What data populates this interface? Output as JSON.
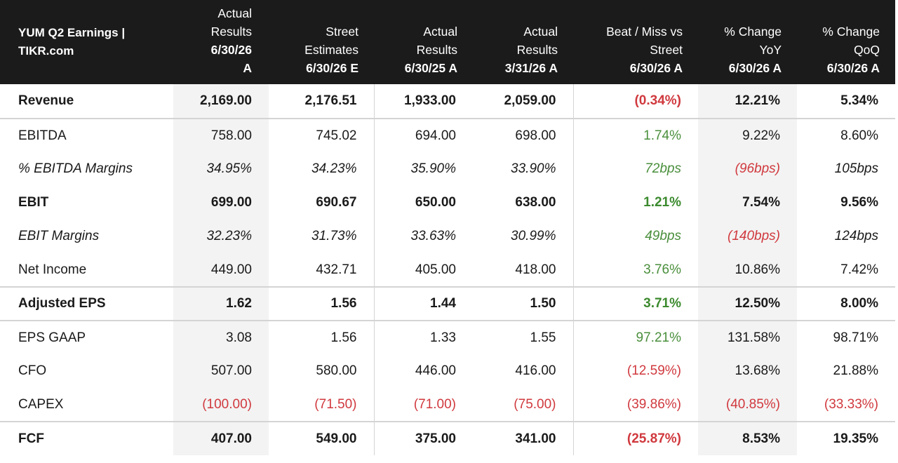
{
  "header": {
    "title_line1": "YUM Q2 Earnings |",
    "title_line2": "TIKR.com",
    "columns": [
      {
        "l1": "Actual",
        "l2": "Results",
        "l3": "6/30/26",
        "l4": "A"
      },
      {
        "l1": "Street",
        "l2": "Estimates",
        "l3": "6/30/26 E",
        "l4": ""
      },
      {
        "l1": "Actual",
        "l2": "Results",
        "l3": "6/30/25 A",
        "l4": ""
      },
      {
        "l1": "Actual",
        "l2": "Results",
        "l3": "3/31/26 A",
        "l4": ""
      },
      {
        "l1": "Beat / Miss vs",
        "l2": "Street",
        "l3": "6/30/26 A",
        "l4": ""
      },
      {
        "l1": "% Change",
        "l2": "YoY",
        "l3": "6/30/26 A",
        "l4": ""
      },
      {
        "l1": "% Change",
        "l2": "QoQ",
        "l3": "6/30/26 A",
        "l4": ""
      }
    ]
  },
  "rows": [
    {
      "label": "Revenue",
      "values": [
        "2,169.00",
        "2,176.51",
        "1,933.00",
        "2,059.00",
        "(0.34%)",
        "12.21%",
        "5.34%"
      ]
    },
    {
      "label": "EBITDA",
      "values": [
        "758.00",
        "745.02",
        "694.00",
        "698.00",
        "1.74%",
        "9.22%",
        "8.60%"
      ]
    },
    {
      "label": "% EBITDA Margins",
      "values": [
        "34.95%",
        "34.23%",
        "35.90%",
        "33.90%",
        "72bps",
        "(96bps)",
        "105bps"
      ]
    },
    {
      "label": "EBIT",
      "values": [
        "699.00",
        "690.67",
        "650.00",
        "638.00",
        "1.21%",
        "7.54%",
        "9.56%"
      ]
    },
    {
      "label": "EBIT Margins",
      "values": [
        "32.23%",
        "31.73%",
        "33.63%",
        "30.99%",
        "49bps",
        "(140bps)",
        "124bps"
      ]
    },
    {
      "label": "Net Income",
      "values": [
        "449.00",
        "432.71",
        "405.00",
        "418.00",
        "3.76%",
        "10.86%",
        "7.42%"
      ]
    },
    {
      "label": "Adjusted EPS",
      "values": [
        "1.62",
        "1.56",
        "1.44",
        "1.50",
        "3.71%",
        "12.50%",
        "8.00%"
      ]
    },
    {
      "label": "EPS GAAP",
      "values": [
        "3.08",
        "1.56",
        "1.33",
        "1.55",
        "97.21%",
        "131.58%",
        "98.71%"
      ]
    },
    {
      "label": "CFO",
      "values": [
        "507.00",
        "580.00",
        "446.00",
        "416.00",
        "(12.59%)",
        "13.68%",
        "21.88%"
      ]
    },
    {
      "label": "CAPEX",
      "values": [
        "(100.00)",
        "(71.50)",
        "(71.00)",
        "(75.00)",
        "(39.86%)",
        "(40.85%)",
        "(33.33%)"
      ]
    },
    {
      "label": "FCF",
      "values": [
        "407.00",
        "549.00",
        "375.00",
        "341.00",
        "(25.87%)",
        "8.53%",
        "19.35%"
      ]
    }
  ],
  "colors": {
    "header_bg": "#1b1b1b",
    "negative": "#d0393e",
    "positive": "#4a8f3c",
    "shade": "#f3f3f3"
  }
}
